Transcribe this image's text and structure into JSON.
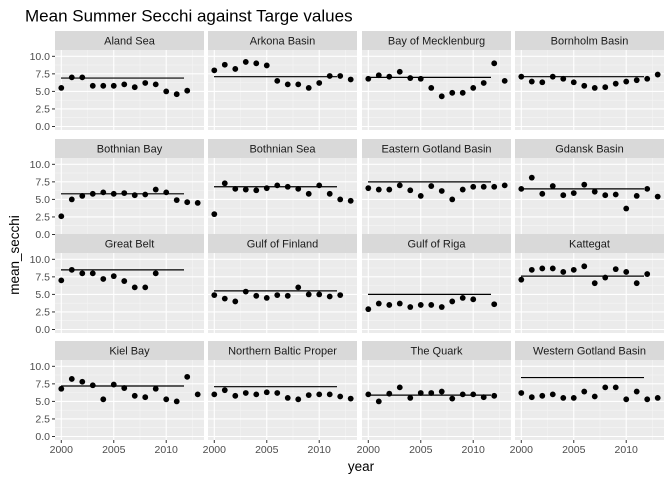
{
  "chart_data": {
    "type": "scatter",
    "title": "Mean Summer Secchi against Targe values",
    "xlabel": "year",
    "ylabel": "mean_secchi",
    "xlim": [
      1999.4,
      2013.6
    ],
    "ylim": [
      -0.5,
      10.9
    ],
    "x_ticks": [
      2000,
      2005,
      2010
    ],
    "y_ticks": [
      0.0,
      2.5,
      5.0,
      7.5,
      10.0
    ],
    "y_tick_labels": [
      "0.0",
      "2.5",
      "5.0",
      "7.5",
      "10.0"
    ],
    "x_tick_labels": [
      "2000",
      "2005",
      "2010"
    ],
    "grid": true,
    "panels": [
      {
        "name": "Aland Sea",
        "target": 6.9,
        "x": [
          2000,
          2001,
          2002,
          2003,
          2004,
          2005,
          2006,
          2007,
          2008,
          2009,
          2010,
          2011,
          2012
        ],
        "y": [
          5.5,
          7.0,
          7.0,
          5.8,
          5.8,
          5.8,
          6.0,
          5.6,
          6.2,
          6.0,
          5.0,
          4.6,
          5.1
        ]
      },
      {
        "name": "Arkona Basin",
        "target": 7.1,
        "x": [
          2000,
          2001,
          2002,
          2003,
          2004,
          2005,
          2006,
          2007,
          2008,
          2009,
          2010,
          2011,
          2012,
          2013
        ],
        "y": [
          8.0,
          8.8,
          8.2,
          9.2,
          9.0,
          8.7,
          6.5,
          6.0,
          6.0,
          5.5,
          6.2,
          7.2,
          7.2,
          6.7
        ]
      },
      {
        "name": "Bay of Mecklenburg",
        "target": 7.0,
        "x": [
          2000,
          2001,
          2002,
          2003,
          2004,
          2005,
          2006,
          2007,
          2008,
          2009,
          2010,
          2011,
          2012,
          2013
        ],
        "y": [
          6.8,
          7.3,
          7.1,
          7.8,
          6.9,
          6.8,
          5.5,
          4.3,
          4.8,
          4.8,
          5.5,
          6.2,
          9.0,
          6.5
        ]
      },
      {
        "name": "Bornholm Basin",
        "target": 7.1,
        "x": [
          2000,
          2001,
          2002,
          2003,
          2004,
          2005,
          2006,
          2007,
          2008,
          2009,
          2010,
          2011,
          2012,
          2013
        ],
        "y": [
          7.1,
          6.4,
          6.3,
          7.1,
          6.8,
          6.3,
          5.8,
          5.5,
          5.6,
          6.1,
          6.4,
          6.6,
          6.8,
          7.4
        ]
      },
      {
        "name": "Bothnian Bay",
        "target": 5.8,
        "x": [
          2000,
          2001,
          2002,
          2003,
          2004,
          2005,
          2006,
          2007,
          2008,
          2009,
          2010,
          2011,
          2012,
          2013
        ],
        "y": [
          2.6,
          5.0,
          5.5,
          5.8,
          6.0,
          5.8,
          5.9,
          5.6,
          5.7,
          6.4,
          6.0,
          4.9,
          4.6,
          4.5
        ]
      },
      {
        "name": "Bothnian Sea",
        "target": 6.8,
        "x": [
          2000,
          2001,
          2002,
          2003,
          2004,
          2005,
          2006,
          2007,
          2008,
          2009,
          2010,
          2011,
          2012,
          2013
        ],
        "y": [
          2.9,
          7.3,
          6.5,
          6.4,
          6.3,
          6.6,
          7.0,
          6.8,
          6.5,
          5.8,
          7.0,
          5.8,
          5.0,
          4.8
        ]
      },
      {
        "name": "Eastern Gotland Basin",
        "target": 7.5,
        "x": [
          2000,
          2001,
          2002,
          2003,
          2004,
          2005,
          2006,
          2007,
          2008,
          2009,
          2010,
          2011,
          2012,
          2013
        ],
        "y": [
          6.6,
          6.4,
          6.4,
          7.0,
          6.3,
          5.5,
          6.9,
          6.2,
          5.0,
          6.4,
          6.8,
          6.8,
          6.8,
          7.0
        ]
      },
      {
        "name": "Gdansk Basin",
        "target": 6.5,
        "x": [
          2000,
          2001,
          2002,
          2003,
          2004,
          2005,
          2006,
          2007,
          2008,
          2009,
          2010,
          2011,
          2012,
          2013
        ],
        "y": [
          6.5,
          8.1,
          5.8,
          6.9,
          5.6,
          5.9,
          7.1,
          6.1,
          5.6,
          5.7,
          3.7,
          5.5,
          6.5,
          5.4
        ]
      },
      {
        "name": "Great Belt",
        "target": 8.5,
        "x": [
          2000,
          2001,
          2002,
          2003,
          2004,
          2005,
          2006,
          2007,
          2008,
          2009
        ],
        "y": [
          7.0,
          8.5,
          8.0,
          8.0,
          7.2,
          7.6,
          6.9,
          6.0,
          6.0,
          8.0
        ]
      },
      {
        "name": "Gulf of Finland",
        "target": 5.5,
        "x": [
          2000,
          2001,
          2002,
          2003,
          2004,
          2005,
          2006,
          2007,
          2008,
          2009,
          2010,
          2011,
          2012
        ],
        "y": [
          4.9,
          4.4,
          4.0,
          5.4,
          4.8,
          4.5,
          4.9,
          4.8,
          6.0,
          5.0,
          5.0,
          4.7,
          4.9
        ]
      },
      {
        "name": "Gulf of Riga",
        "target": 5.0,
        "x": [
          2000,
          2001,
          2002,
          2003,
          2004,
          2005,
          2006,
          2007,
          2008,
          2009,
          2010,
          2012
        ],
        "y": [
          2.9,
          3.7,
          3.5,
          3.7,
          3.2,
          3.5,
          3.5,
          3.2,
          4.0,
          4.5,
          4.3,
          3.6
        ]
      },
      {
        "name": "Kattegat",
        "target": 7.6,
        "x": [
          2000,
          2001,
          2002,
          2003,
          2004,
          2005,
          2006,
          2007,
          2008,
          2009,
          2010,
          2011,
          2012
        ],
        "y": [
          7.1,
          8.5,
          8.7,
          8.7,
          8.2,
          8.5,
          9.0,
          6.6,
          7.4,
          8.6,
          8.2,
          6.6,
          7.9
        ]
      },
      {
        "name": "Kiel Bay",
        "target": 7.2,
        "x": [
          2000,
          2001,
          2002,
          2003,
          2004,
          2005,
          2006,
          2007,
          2008,
          2009,
          2010,
          2011,
          2012,
          2013
        ],
        "y": [
          6.8,
          8.2,
          7.8,
          7.3,
          5.3,
          7.4,
          6.9,
          5.8,
          5.6,
          6.8,
          5.3,
          5.0,
          8.5,
          6.0
        ]
      },
      {
        "name": "Northern Baltic Proper",
        "target": 7.1,
        "x": [
          2000,
          2001,
          2002,
          2003,
          2004,
          2005,
          2006,
          2007,
          2008,
          2009,
          2010,
          2011,
          2012,
          2013
        ],
        "y": [
          6.0,
          6.6,
          5.8,
          6.2,
          6.0,
          6.3,
          6.2,
          5.5,
          5.3,
          5.9,
          6.0,
          6.0,
          5.7,
          5.4
        ]
      },
      {
        "name": "The Quark",
        "target": 5.9,
        "x": [
          2000,
          2001,
          2002,
          2003,
          2004,
          2005,
          2006,
          2007,
          2008,
          2009,
          2010,
          2011,
          2012
        ],
        "y": [
          6.0,
          5.0,
          6.1,
          7.0,
          5.5,
          6.2,
          6.2,
          6.4,
          5.4,
          6.0,
          6.0,
          5.6,
          5.8
        ]
      },
      {
        "name": "Western Gotland Basin",
        "target": 8.4,
        "x": [
          2000,
          2001,
          2002,
          2003,
          2004,
          2005,
          2006,
          2007,
          2008,
          2009,
          2010,
          2011,
          2012,
          2013
        ],
        "y": [
          6.2,
          5.6,
          5.8,
          6.0,
          5.5,
          5.5,
          6.4,
          5.7,
          7.0,
          7.0,
          5.3,
          6.4,
          5.3,
          5.5
        ]
      }
    ]
  }
}
